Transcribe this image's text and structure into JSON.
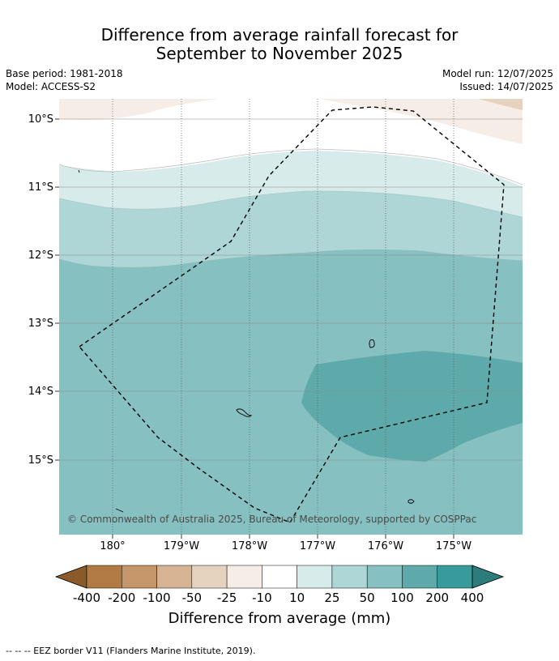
{
  "title_line1": "Difference from average rainfall forecast for",
  "title_line2": "September to November 2025",
  "base_period": "Base period: 1981-2018",
  "model": "Model: ACCESS-S2",
  "model_run": "Model run: 12/07/2025",
  "issued": "Issued: 14/07/2025",
  "copyright": "© Commonwealth of Australia 2025, Bureau of Meteorology, supported by COSPPac",
  "y_ticks": [
    "10°S",
    "11°S",
    "12°S",
    "13°S",
    "14°S",
    "15°S"
  ],
  "x_ticks": [
    "180°",
    "179°W",
    "178°W",
    "177°W",
    "176°W",
    "175°W"
  ],
  "colorbar": {
    "label": "Difference from average (mm)",
    "ticks": [
      "-400",
      "-200",
      "-100",
      "-50",
      "-25",
      "-10",
      "10",
      "25",
      "50",
      "100",
      "200",
      "400"
    ],
    "colors": [
      "#8b5a2b",
      "#b07a45",
      "#c49669",
      "#d6b392",
      "#e5d2bf",
      "#f5ede6",
      "#ffffff",
      "#d7ebea",
      "#aed6d6",
      "#87c0c1",
      "#5eaaab",
      "#369b9a",
      "#2c7c7b"
    ]
  },
  "footnote": "-- -- -- EEZ border V11 (Flanders Marine Institute, 2019).",
  "chart_data": {
    "type": "heatmap",
    "variable": "Rainfall difference from average (mm)",
    "extent": {
      "lon": [
        179.2,
        -174.0
      ],
      "lat": [
        -9.8,
        -16.1
      ]
    },
    "zones": [
      {
        "range": "-25 to -10",
        "location": "top edge near 10°S"
      },
      {
        "range": "-10 to 10",
        "location": "around 10.2°S to 10.8°S"
      },
      {
        "range": "10 to 25",
        "location": "around 10.5°S to 11.4°S"
      },
      {
        "range": "25 to 50",
        "location": "around 11.2°S to 12.2°S"
      },
      {
        "range": "50 to 100",
        "location": "south of 12°S"
      },
      {
        "range": "100 to 200",
        "location": "east, around 13.5°S to 15°S"
      }
    ],
    "islands": [
      "Samoan islands near 176.2°W 13.3°S",
      "islands near 178°W 14.3°S",
      "island near 175.6°W 15.6°S"
    ]
  }
}
